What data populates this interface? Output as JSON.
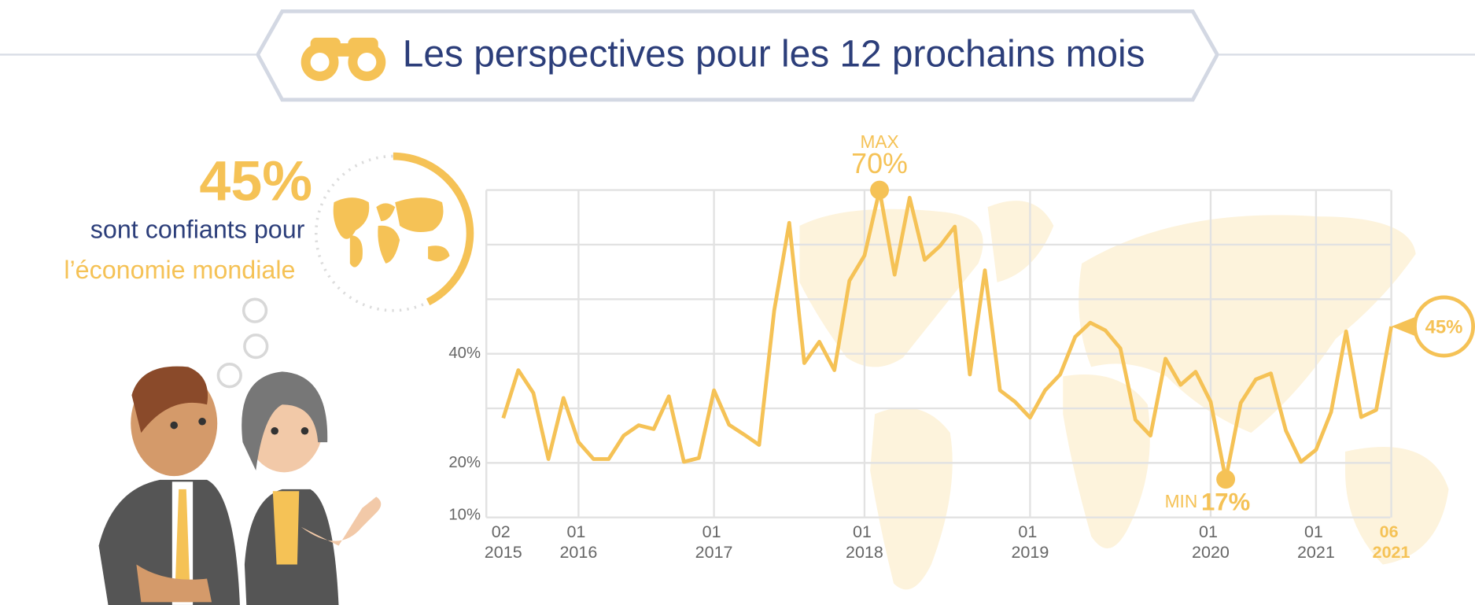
{
  "header": {
    "title": "Les perspectives pour les 12 prochains mois"
  },
  "stat": {
    "value": "45%",
    "line1": "sont confiants pour",
    "line2": "l’économie mondiale"
  },
  "chart_data": {
    "type": "line",
    "categories": [
      "02 2015",
      null,
      null,
      null,
      null,
      "01 2016",
      null,
      null,
      null,
      null,
      null,
      null,
      null,
      null,
      "01 2017",
      null,
      null,
      null,
      null,
      null,
      null,
      null,
      null,
      null,
      "01 2018",
      null,
      null,
      null,
      null,
      null,
      null,
      null,
      null,
      null,
      null,
      "01 2019",
      null,
      null,
      null,
      null,
      null,
      null,
      null,
      null,
      null,
      null,
      null,
      "01 2020",
      null,
      null,
      null,
      null,
      null,
      null,
      "01 2021",
      null,
      null,
      null,
      null,
      "06 2021"
    ],
    "values": [
      28.2,
      37,
      32.8,
      20.7,
      31.9,
      23.8,
      20.7,
      20.7,
      25,
      26.9,
      26.2,
      32.2,
      20.2,
      20.9,
      33.3,
      27,
      25.2,
      23.3,
      47.9,
      64,
      38.3,
      42.2,
      37,
      53.4,
      58,
      70,
      54.5,
      68.6,
      57.2,
      59.7,
      63.3,
      36.2,
      55.3,
      33.3,
      31.2,
      28.3,
      33.3,
      36.2,
      43.1,
      45.7,
      44.3,
      41,
      27.9,
      25,
      39.1,
      34.3,
      36.7,
      31.2,
      17,
      31,
      35.3,
      36.4,
      25.9,
      20.2,
      22.4,
      29.3,
      44.1,
      28.4,
      29.7,
      45
    ],
    "color": "#f5c256",
    "ylim": [
      10,
      70
    ],
    "yticks": [
      {
        "value": 10,
        "label": "10%"
      },
      {
        "value": 20,
        "label": "20%"
      },
      {
        "value": 40,
        "label": "40%"
      }
    ],
    "ygrid": [
      30,
      50,
      60,
      70
    ],
    "max_label": "MAX",
    "max_value_label": "70%",
    "min_label": "MIN",
    "min_value_label": "17%",
    "last_value_label": "45%"
  }
}
